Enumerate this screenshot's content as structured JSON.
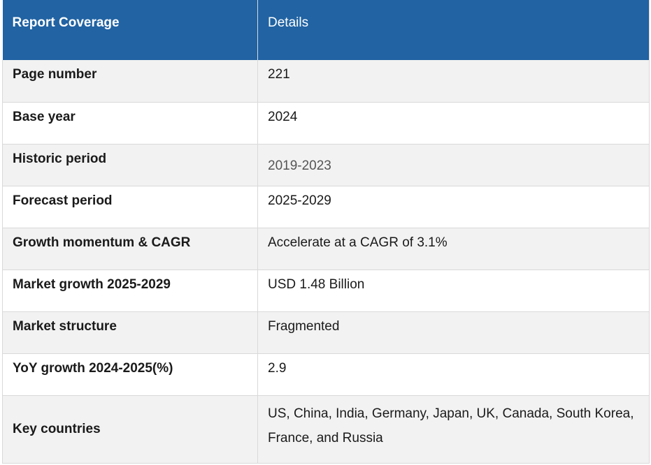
{
  "table": {
    "headers": [
      "Report Coverage",
      "Details"
    ],
    "rows": [
      {
        "label": "Page number",
        "value": "221"
      },
      {
        "label": "Base year",
        "value": "2024"
      },
      {
        "label": "Historic period",
        "value": "2019-2023"
      },
      {
        "label": "Forecast period",
        "value": "2025-2029"
      },
      {
        "label": "Growth momentum & CAGR",
        "value": "Accelerate at a CAGR of 3.1%"
      },
      {
        "label": "Market growth 2025-2029",
        "value": "USD 1.48 Billion"
      },
      {
        "label": "Market structure",
        "value": "Fragmented"
      },
      {
        "label": "YoY growth 2024-2025(%)",
        "value": "2.9"
      },
      {
        "label": "Key countries",
        "value": "US, China, India, Germany, Japan, UK, Canada, South Korea, France, and Russia"
      }
    ]
  },
  "colors": {
    "header_bg": "#2163a3",
    "row_alt_bg": "#f2f2f2",
    "border": "#d9d9d9"
  }
}
